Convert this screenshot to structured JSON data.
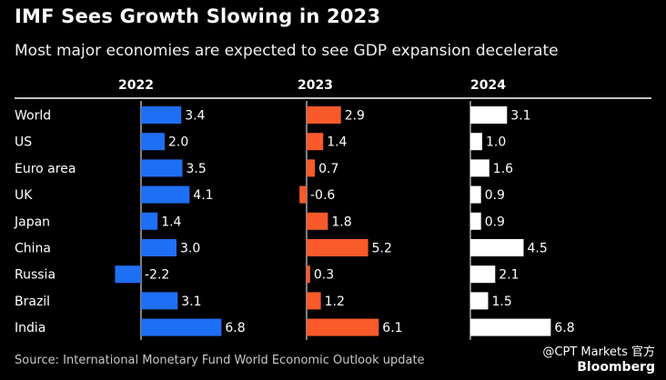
{
  "title": "IMF Sees Growth Slowing in 2023",
  "subtitle": "Most major economies are expected to see GDP expansion decelerate",
  "source": "Source: International Monetary Fund World Economic Outlook update",
  "watermark": "@CPT Markets 官方",
  "brand": "Bloomberg",
  "colors": {
    "2022": "#1f6ff4",
    "2023": "#f85a2a",
    "2024": "#ffffff",
    "background": "#000000"
  },
  "chart_data": {
    "type": "bar",
    "orientation": "horizontal",
    "title": "IMF Sees Growth Slowing in 2023",
    "subtitle": "Most major economies are expected to see GDP expansion decelerate",
    "categories": [
      "World",
      "US",
      "Euro area",
      "UK",
      "Japan",
      "China",
      "Russia",
      "Brazil",
      "India"
    ],
    "series": [
      {
        "name": "2022",
        "values": [
          3.4,
          2.0,
          3.5,
          4.1,
          1.4,
          3.0,
          -2.2,
          3.1,
          6.8
        ],
        "labels": [
          "3.4",
          "2.0",
          "3.5",
          "4.1",
          "1.4",
          "3.0",
          "-2.2",
          "3.1",
          "6.8"
        ]
      },
      {
        "name": "2023",
        "values": [
          2.9,
          1.4,
          0.7,
          -0.6,
          1.8,
          5.2,
          0.3,
          1.2,
          6.1
        ],
        "labels": [
          "2.9",
          "1.4",
          "0.7",
          "-0.6",
          "1.8",
          "5.2",
          "0.3",
          "1.2",
          "6.1"
        ]
      },
      {
        "name": "2024",
        "values": [
          3.1,
          1.0,
          1.6,
          0.9,
          0.9,
          4.5,
          2.1,
          1.5,
          6.8
        ],
        "labels": [
          "3.1",
          "1.0",
          "1.6",
          "0.9",
          "0.9",
          "4.5",
          "2.1",
          "1.5",
          "6.8"
        ]
      }
    ],
    "grid": false,
    "legend": "none"
  }
}
